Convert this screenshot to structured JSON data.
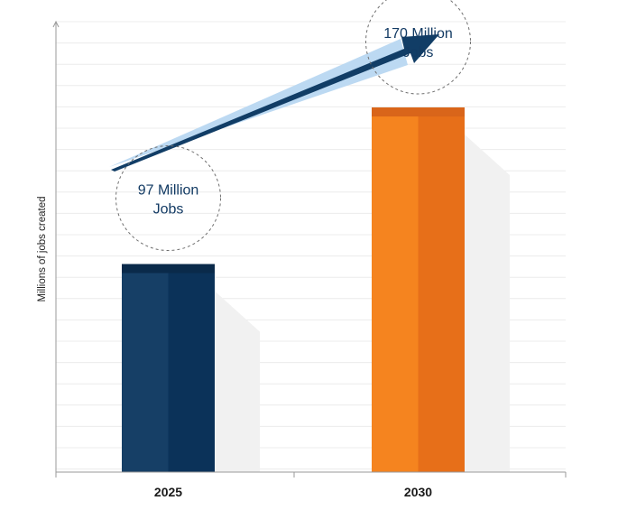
{
  "chart_data": {
    "type": "bar",
    "categories": [
      "2025",
      "2030"
    ],
    "values": [
      97,
      170
    ],
    "value_labels": [
      [
        "97 Million",
        "Jobs"
      ],
      [
        "170 Million",
        "Jobs"
      ]
    ],
    "title": "",
    "xlabel": "",
    "ylabel": "Millions of jobs created",
    "ylim": [
      0,
      210
    ],
    "grid": true,
    "colors": {
      "bar_2025_light": "#163f66",
      "bar_2025_dark": "#0b3259",
      "bar_2025_cap": "#0a2a4a",
      "bar_2030_light": "#f5841f",
      "bar_2030_dark": "#e76f19",
      "bar_2030_cap": "#d9651a",
      "arrow": "#113d66",
      "arrow_highlight": "#bcd9f2",
      "shadow": "#f1f1f1",
      "grid": "#ececec",
      "axis": "#9a9a9a"
    }
  }
}
